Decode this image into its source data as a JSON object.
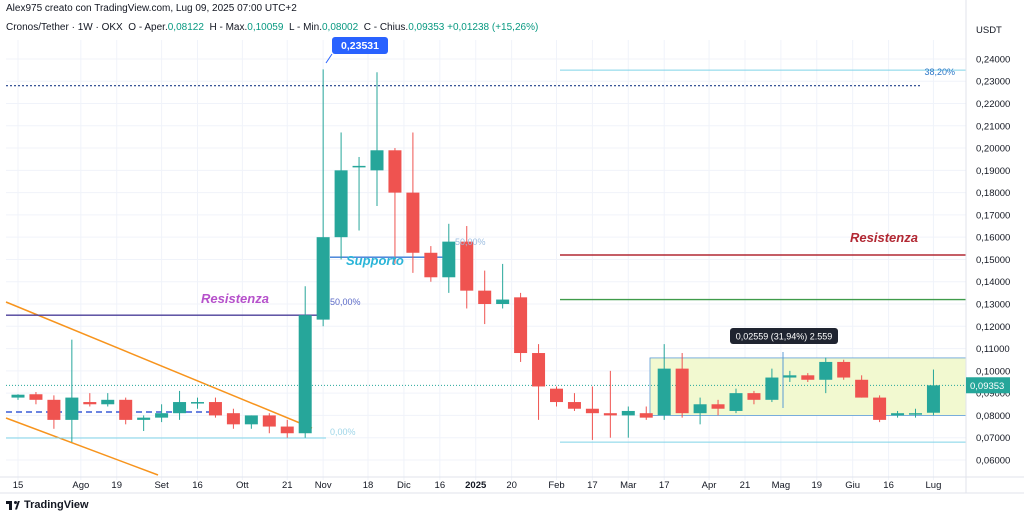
{
  "header": {
    "credit": "Alex975 creato con TradingView.com, Lug 09, 2025 07:00 UTC+2",
    "symbol": "Cronos/Tether · 1W · OKX",
    "open_label": "O",
    "open_word": "Aper.",
    "open": "0,08122",
    "high_label": "H",
    "high_word": "Max.",
    "high": "0,10059",
    "low_label": "L",
    "low_word": "Min.",
    "low": "0,08002",
    "close_label": "C",
    "close_word": "Chius.",
    "close": "0,09353",
    "change": "+0,01238 (+15,26%)"
  },
  "footer": {
    "brand": "TradingView"
  },
  "colors": {
    "up": "#26a69a",
    "down": "#ef5350",
    "grid": "#f0f3fa",
    "price_tag": "#26a69a",
    "resistance_label": "#b22833",
    "resistance_purple": "#b651cb",
    "support_label": "#2ab5d8",
    "trend_orange": "#f7941d",
    "fib_line": "#7fd3e8",
    "top_dotted": "#1e3f8a",
    "range_box": "#f2f9d0"
  },
  "chart_data": {
    "type": "candlestick",
    "currency": "USDT",
    "y_ticks": [
      "0,24000",
      "0,23000",
      "0,22000",
      "0,21000",
      "0,20000",
      "0,19000",
      "0,18000",
      "0,17000",
      "0,16000",
      "0,15000",
      "0,14000",
      "0,13000",
      "0,12000",
      "0,11000",
      "0,10000",
      "0,09000",
      "0,08000",
      "0,07000",
      "0,06000"
    ],
    "ylim": [
      0.0555,
      0.2485
    ],
    "x_ticks": [
      "15",
      "Ago",
      "19",
      "Set",
      "16",
      "Ott",
      "21",
      "Nov",
      "18",
      "Dic",
      "16",
      "2025",
      "20",
      "Feb",
      "17",
      "Mar",
      "17",
      "Apr",
      "21",
      "Mag",
      "19",
      "Giu",
      "16",
      "Lug"
    ],
    "last_price": "0,09353",
    "candles": [
      {
        "o": 0.088,
        "h": 0.0895,
        "l": 0.087,
        "c": 0.0893
      },
      {
        "o": 0.0895,
        "h": 0.0905,
        "l": 0.085,
        "c": 0.087
      },
      {
        "o": 0.087,
        "h": 0.089,
        "l": 0.074,
        "c": 0.078
      },
      {
        "o": 0.078,
        "h": 0.114,
        "l": 0.068,
        "c": 0.088
      },
      {
        "o": 0.086,
        "h": 0.09,
        "l": 0.084,
        "c": 0.085
      },
      {
        "o": 0.085,
        "h": 0.09,
        "l": 0.084,
        "c": 0.087
      },
      {
        "o": 0.087,
        "h": 0.088,
        "l": 0.076,
        "c": 0.078
      },
      {
        "o": 0.078,
        "h": 0.08,
        "l": 0.073,
        "c": 0.079
      },
      {
        "o": 0.079,
        "h": 0.085,
        "l": 0.077,
        "c": 0.081
      },
      {
        "o": 0.081,
        "h": 0.091,
        "l": 0.078,
        "c": 0.086
      },
      {
        "o": 0.086,
        "h": 0.088,
        "l": 0.083,
        "c": 0.086
      },
      {
        "o": 0.086,
        "h": 0.088,
        "l": 0.079,
        "c": 0.08
      },
      {
        "o": 0.081,
        "h": 0.083,
        "l": 0.074,
        "c": 0.076
      },
      {
        "o": 0.076,
        "h": 0.08,
        "l": 0.074,
        "c": 0.08
      },
      {
        "o": 0.08,
        "h": 0.081,
        "l": 0.072,
        "c": 0.075
      },
      {
        "o": 0.075,
        "h": 0.078,
        "l": 0.07,
        "c": 0.072
      },
      {
        "o": 0.072,
        "h": 0.138,
        "l": 0.07,
        "c": 0.125
      },
      {
        "o": 0.123,
        "h": 0.2353,
        "l": 0.12,
        "c": 0.16
      },
      {
        "o": 0.16,
        "h": 0.207,
        "l": 0.15,
        "c": 0.19
      },
      {
        "o": 0.192,
        "h": 0.196,
        "l": 0.163,
        "c": 0.192
      },
      {
        "o": 0.19,
        "h": 0.234,
        "l": 0.174,
        "c": 0.199
      },
      {
        "o": 0.199,
        "h": 0.2,
        "l": 0.148,
        "c": 0.18
      },
      {
        "o": 0.18,
        "h": 0.207,
        "l": 0.144,
        "c": 0.153
      },
      {
        "o": 0.153,
        "h": 0.156,
        "l": 0.14,
        "c": 0.142
      },
      {
        "o": 0.142,
        "h": 0.166,
        "l": 0.135,
        "c": 0.158
      },
      {
        "o": 0.158,
        "h": 0.165,
        "l": 0.128,
        "c": 0.136
      },
      {
        "o": 0.136,
        "h": 0.145,
        "l": 0.121,
        "c": 0.13
      },
      {
        "o": 0.13,
        "h": 0.148,
        "l": 0.128,
        "c": 0.132
      },
      {
        "o": 0.133,
        "h": 0.135,
        "l": 0.104,
        "c": 0.108
      },
      {
        "o": 0.108,
        "h": 0.112,
        "l": 0.078,
        "c": 0.093
      },
      {
        "o": 0.092,
        "h": 0.093,
        "l": 0.084,
        "c": 0.086
      },
      {
        "o": 0.086,
        "h": 0.09,
        "l": 0.082,
        "c": 0.083
      },
      {
        "o": 0.083,
        "h": 0.093,
        "l": 0.069,
        "c": 0.081
      },
      {
        "o": 0.081,
        "h": 0.1,
        "l": 0.07,
        "c": 0.08
      },
      {
        "o": 0.08,
        "h": 0.084,
        "l": 0.07,
        "c": 0.082
      },
      {
        "o": 0.081,
        "h": 0.084,
        "l": 0.078,
        "c": 0.079
      },
      {
        "o": 0.08,
        "h": 0.112,
        "l": 0.078,
        "c": 0.101
      },
      {
        "o": 0.101,
        "h": 0.108,
        "l": 0.079,
        "c": 0.081
      },
      {
        "o": 0.081,
        "h": 0.088,
        "l": 0.076,
        "c": 0.085
      },
      {
        "o": 0.085,
        "h": 0.087,
        "l": 0.08,
        "c": 0.083
      },
      {
        "o": 0.082,
        "h": 0.092,
        "l": 0.081,
        "c": 0.09
      },
      {
        "o": 0.09,
        "h": 0.091,
        "l": 0.085,
        "c": 0.087
      },
      {
        "o": 0.087,
        "h": 0.101,
        "l": 0.086,
        "c": 0.097
      },
      {
        "o": 0.097,
        "h": 0.1,
        "l": 0.095,
        "c": 0.098
      },
      {
        "o": 0.098,
        "h": 0.099,
        "l": 0.095,
        "c": 0.096
      },
      {
        "o": 0.096,
        "h": 0.106,
        "l": 0.09,
        "c": 0.104
      },
      {
        "o": 0.104,
        "h": 0.105,
        "l": 0.096,
        "c": 0.097
      },
      {
        "o": 0.096,
        "h": 0.098,
        "l": 0.088,
        "c": 0.088
      },
      {
        "o": 0.088,
        "h": 0.089,
        "l": 0.077,
        "c": 0.078
      },
      {
        "o": 0.08,
        "h": 0.082,
        "l": 0.079,
        "c": 0.081
      },
      {
        "o": 0.081,
        "h": 0.083,
        "l": 0.079,
        "c": 0.081
      },
      {
        "o": 0.0812,
        "h": 0.1006,
        "l": 0.08,
        "c": 0.0935
      }
    ],
    "annotations": {
      "high_tag": "0,23531",
      "fib_382": "38,20%",
      "fib_50": "50,00%",
      "fib_0": "0,00%",
      "fib_hidden": "50,00%",
      "support": "Supporto",
      "resistance_left": "Resistenza",
      "resistance_right": "Resistenza",
      "measure": "0,02559 (31,94%) 2.559"
    },
    "levels": {
      "top_dotted": 0.228,
      "fib_382": 0.235,
      "resistance_left": 0.125,
      "support": 0.151,
      "resistance_right": 0.152,
      "green_line": 0.132,
      "fib_0": 0.068,
      "current_dotted": 0.0935
    },
    "range_box": {
      "top": 0.1058,
      "bottom": 0.08
    },
    "grid": true
  }
}
